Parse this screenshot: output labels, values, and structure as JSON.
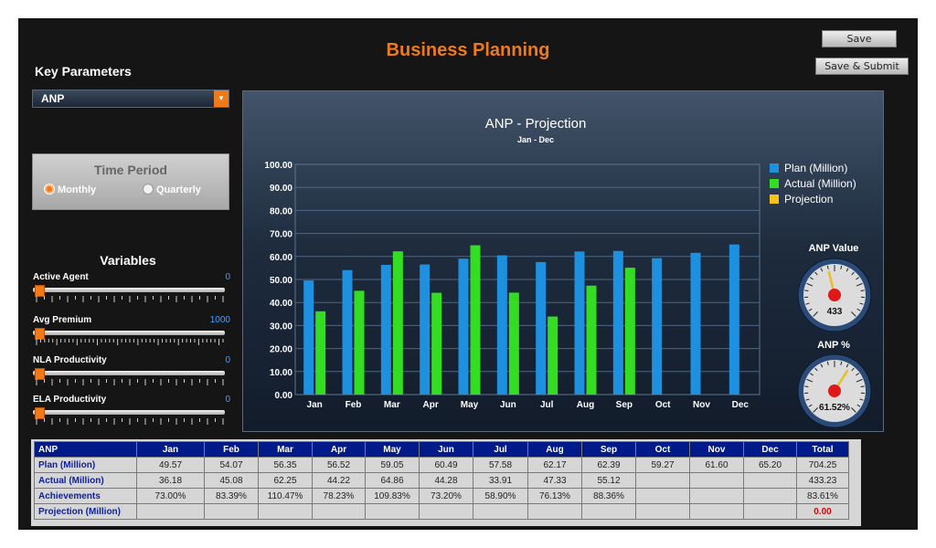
{
  "header": {
    "title": "Business Planning",
    "save_label": "Save",
    "save_submit_label": "Save & Submit"
  },
  "key_parameters": {
    "label": "Key Parameters",
    "selected": "ANP"
  },
  "time_period": {
    "label": "Time Period",
    "options": [
      "Monthly",
      "Quarterly"
    ],
    "selected": "Monthly"
  },
  "variables": {
    "label": "Variables",
    "items": [
      {
        "label": "Active Agent",
        "value": "0",
        "level": 0
      },
      {
        "label": "Avg Premium",
        "value": "1000",
        "level": 0
      },
      {
        "label": "NLA Productivity",
        "value": "0",
        "level": 0
      },
      {
        "label": "ELA Productivity",
        "value": "0",
        "level": 0
      }
    ]
  },
  "chart_data": {
    "type": "bar",
    "title": "ANP - Projection",
    "subtitle": "Jan - Dec",
    "categories": [
      "Jan",
      "Feb",
      "Mar",
      "Apr",
      "May",
      "Jun",
      "Jul",
      "Aug",
      "Sep",
      "Oct",
      "Nov",
      "Dec"
    ],
    "ylim": [
      0,
      100
    ],
    "yticks": [
      "0.00",
      "10.00",
      "20.00",
      "30.00",
      "40.00",
      "50.00",
      "60.00",
      "70.00",
      "80.00",
      "90.00",
      "100.00"
    ],
    "grid": true,
    "legend_position": "top-right",
    "series": [
      {
        "name": "Plan (Million)",
        "color": "#1e90e0",
        "values": [
          49.57,
          54.07,
          56.35,
          56.52,
          59.05,
          60.49,
          57.58,
          62.17,
          62.39,
          59.27,
          61.6,
          65.2
        ]
      },
      {
        "name": "Actual (Million)",
        "color": "#33dd22",
        "values": [
          36.18,
          45.08,
          62.25,
          44.22,
          64.86,
          44.28,
          33.91,
          47.33,
          55.12,
          null,
          null,
          null
        ]
      },
      {
        "name": "Projection",
        "color": "#f7c21a",
        "values": [
          null,
          null,
          null,
          null,
          null,
          null,
          null,
          null,
          null,
          null,
          null,
          null
        ]
      }
    ]
  },
  "gauges": [
    {
      "title": "ANP Value",
      "display": "433",
      "fraction": 0.45
    },
    {
      "title": "ANP %",
      "display": "61.52%",
      "fraction": 0.62
    }
  ],
  "table": {
    "header": [
      "ANP",
      "Jan",
      "Feb",
      "Mar",
      "Apr",
      "May",
      "Jun",
      "Jul",
      "Aug",
      "Sep",
      "Oct",
      "Nov",
      "Dec",
      "Total"
    ],
    "rows": [
      [
        "Plan (Million)",
        "49.57",
        "54.07",
        "56.35",
        "56.52",
        "59.05",
        "60.49",
        "57.58",
        "62.17",
        "62.39",
        "59.27",
        "61.60",
        "65.20",
        "704.25"
      ],
      [
        "Actual (Million)",
        "36.18",
        "45.08",
        "62.25",
        "44.22",
        "64.86",
        "44.28",
        "33.91",
        "47.33",
        "55.12",
        "",
        "",
        "",
        "433.23"
      ],
      [
        "Achievements",
        "73.00%",
        "83.39%",
        "110.47%",
        "78.23%",
        "109.83%",
        "73.20%",
        "58.90%",
        "76.13%",
        "88.36%",
        "",
        "",
        "",
        "83.61%"
      ],
      [
        "Projection (Million)",
        "",
        "",
        "",
        "",
        "",
        "",
        "",
        "",
        "",
        "",
        "",
        "",
        "0.00"
      ]
    ]
  }
}
